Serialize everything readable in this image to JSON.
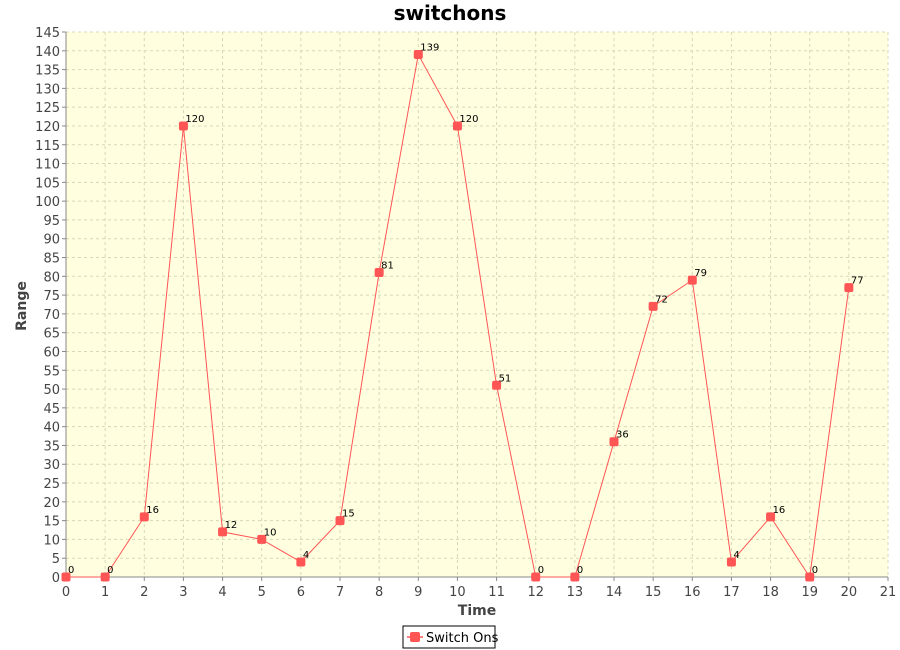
{
  "colors": {
    "plot_background": "#ffffe0",
    "grid": "#d8d8b8",
    "series_line": "#ff5555",
    "series_marker": "#ff5555",
    "axis": "#888888"
  },
  "chart_data": {
    "type": "line",
    "title": "switchons",
    "xlabel": "Time",
    "ylabel": "Range",
    "xlim": [
      0,
      21
    ],
    "ylim": [
      0,
      145
    ],
    "x_ticks": [
      0,
      1,
      2,
      3,
      4,
      5,
      6,
      7,
      8,
      9,
      10,
      11,
      12,
      13,
      14,
      15,
      16,
      17,
      18,
      19,
      20,
      21
    ],
    "y_ticks": [
      0,
      5,
      10,
      15,
      20,
      25,
      30,
      35,
      40,
      45,
      50,
      55,
      60,
      65,
      70,
      75,
      80,
      85,
      90,
      95,
      100,
      105,
      110,
      115,
      120,
      125,
      130,
      135,
      140,
      145
    ],
    "grid": true,
    "legend_position": "bottom-center",
    "series": [
      {
        "name": "Switch Ons",
        "x": [
          0,
          1,
          2,
          3,
          4,
          5,
          6,
          7,
          8,
          9,
          10,
          11,
          12,
          13,
          14,
          15,
          16,
          17,
          18,
          19,
          20
        ],
        "y": [
          0,
          0,
          16,
          120,
          12,
          10,
          4,
          15,
          81,
          139,
          120,
          51,
          0,
          0,
          36,
          72,
          79,
          4,
          16,
          0,
          77
        ]
      }
    ]
  }
}
